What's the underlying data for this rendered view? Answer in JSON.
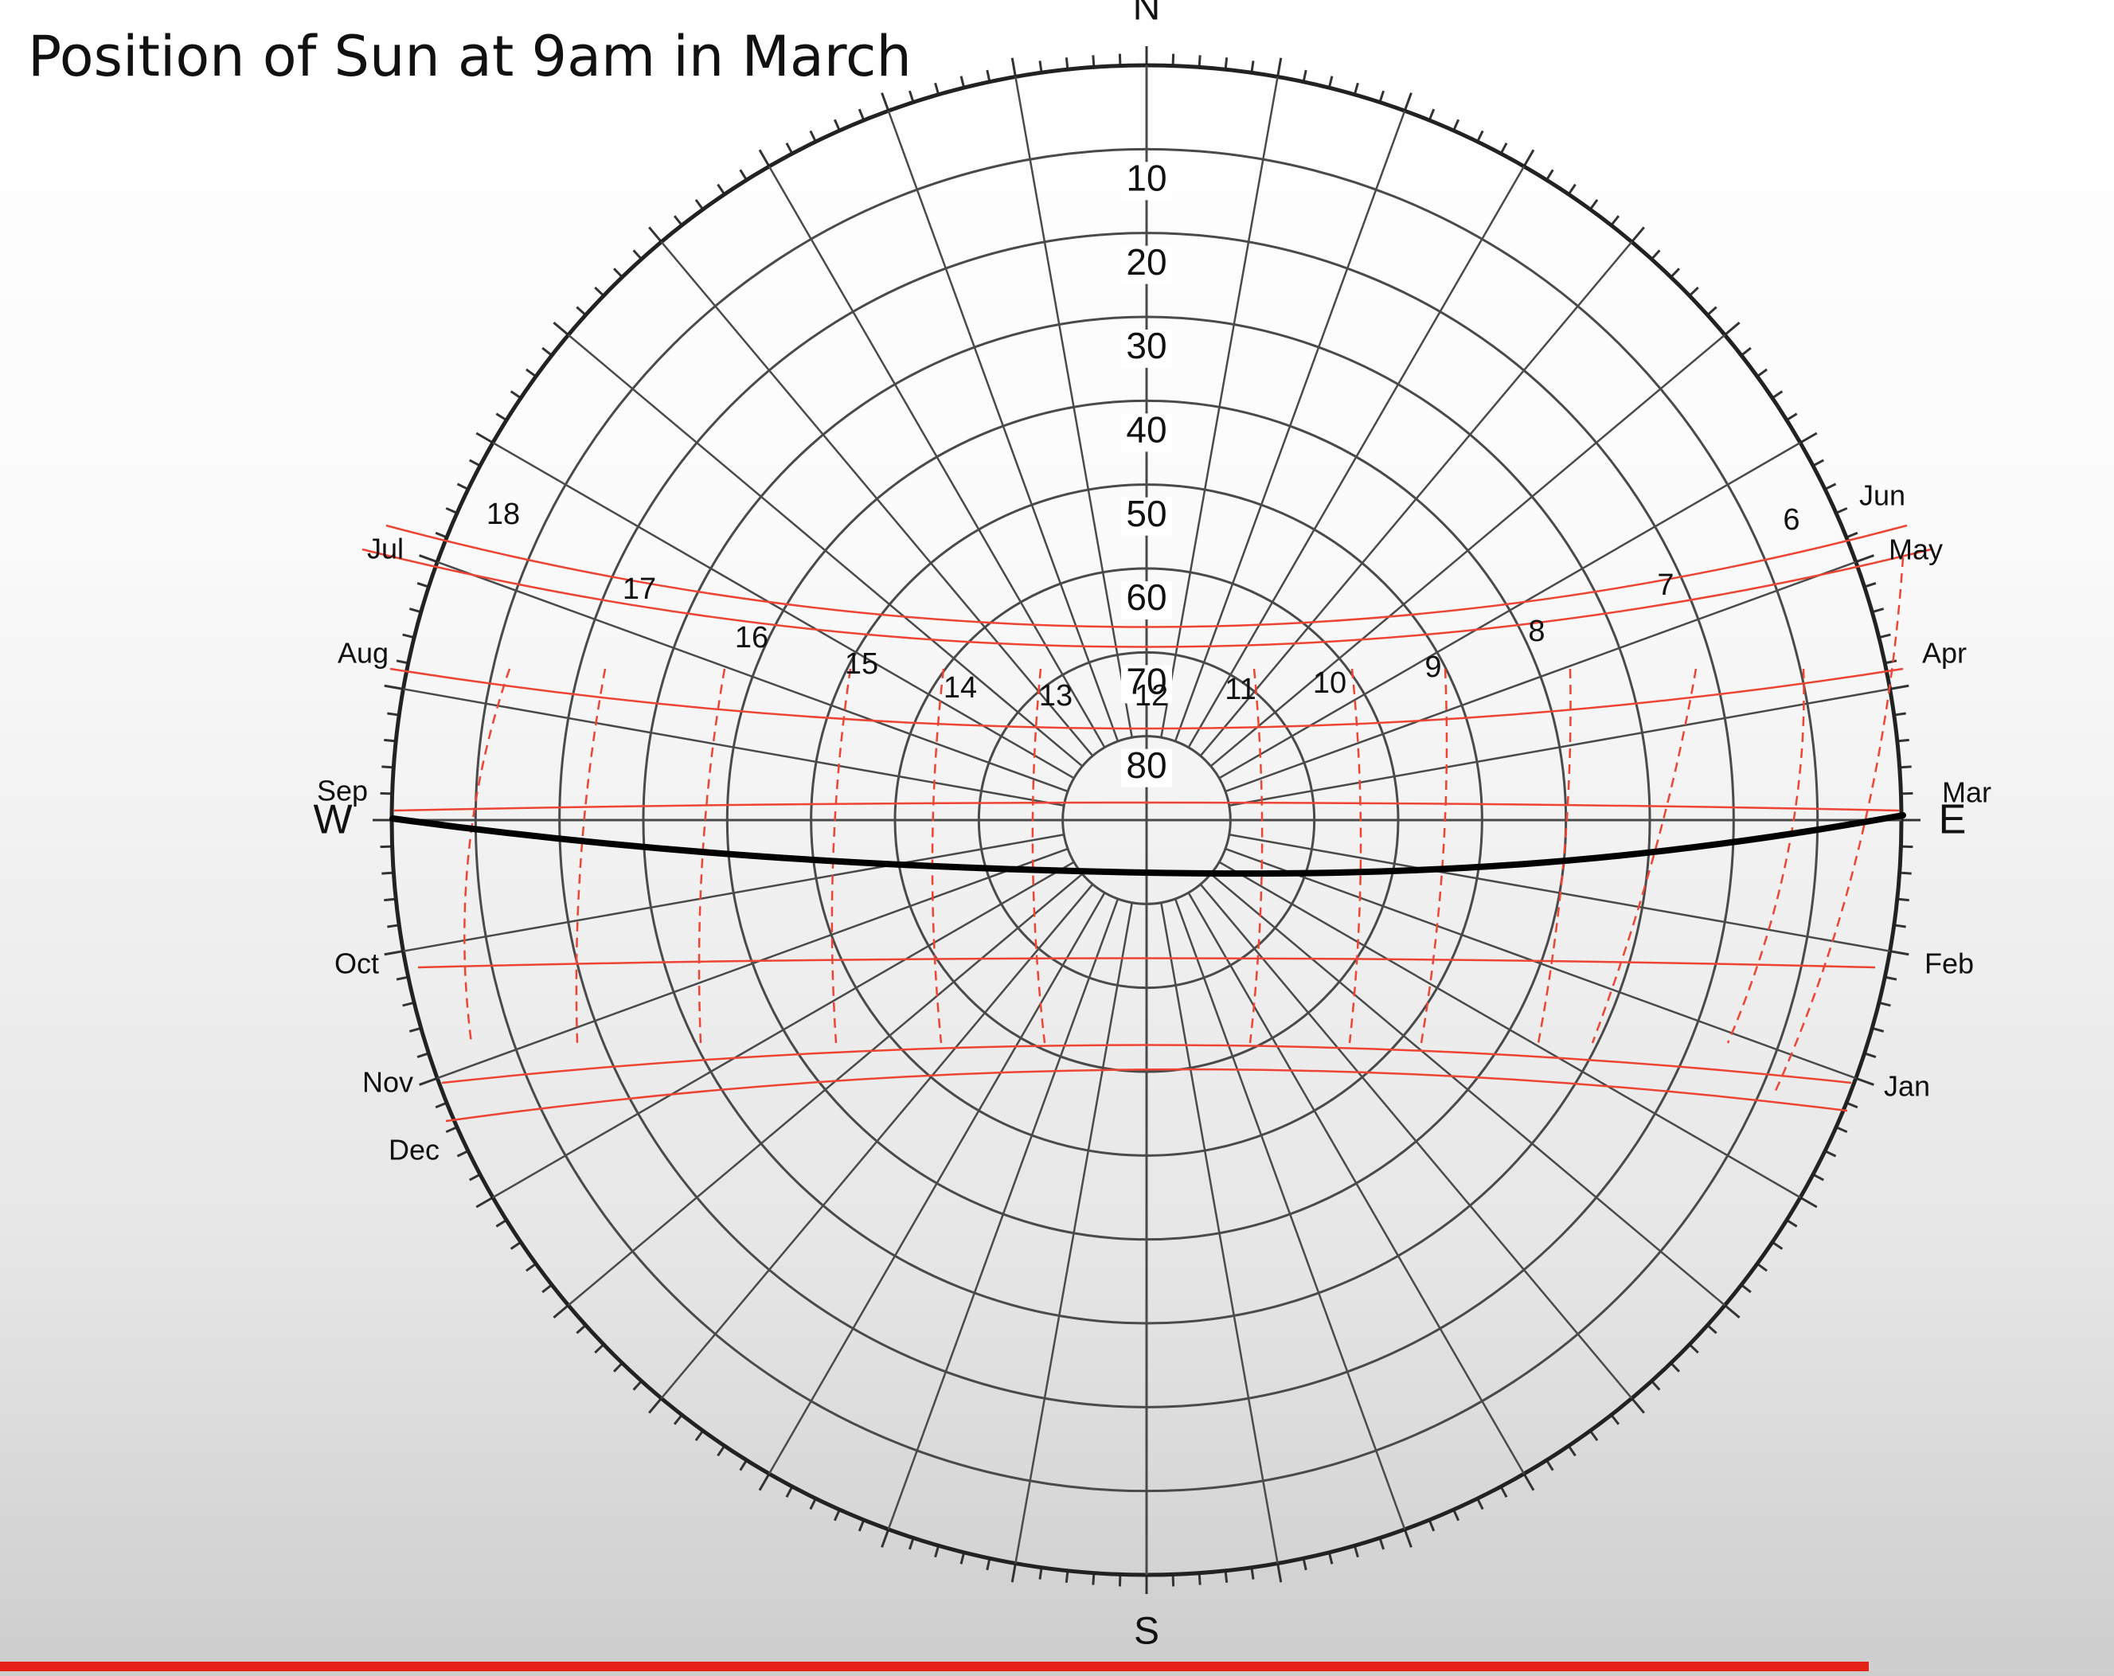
{
  "title": "Position of Sun at 9am in March",
  "chart_data": {
    "type": "sun-path-diagram",
    "directions": {
      "north": "N",
      "south": "S",
      "east": "E",
      "west": "W"
    },
    "altitude_labels": [
      "10",
      "20",
      "30",
      "40",
      "50",
      "60",
      "70",
      "80"
    ],
    "hour_labels": [
      "6",
      "7",
      "8",
      "9",
      "10",
      "11",
      "12",
      "13",
      "14",
      "15",
      "16",
      "17",
      "18"
    ],
    "months_left": [
      "Jul",
      "Aug",
      "Sep",
      "Oct",
      "Nov",
      "Dec"
    ],
    "months_right": [
      "Jun",
      "May",
      "Apr",
      "Mar",
      "Feb",
      "Jan"
    ],
    "colors": {
      "grid": "#4a4a4a",
      "sun_path": "#ee4433",
      "highlight": "#000000",
      "progress": "#e62117"
    }
  },
  "progress": {
    "value": 0.884
  }
}
